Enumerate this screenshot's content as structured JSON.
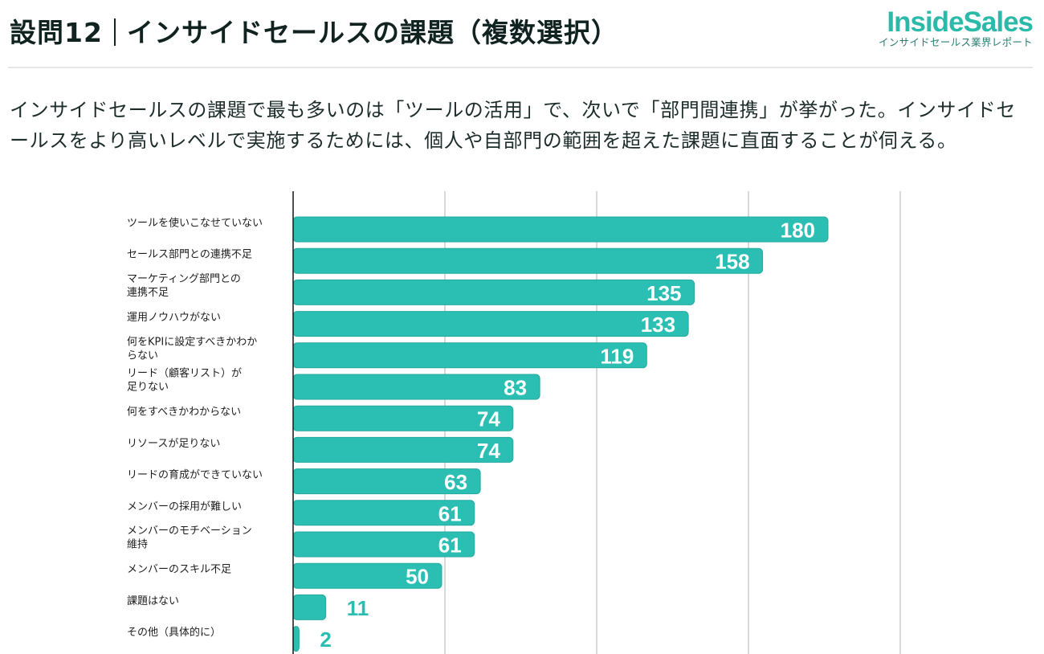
{
  "header": {
    "question_number": "設問12",
    "title": "インサイドセールスの課題（複数選択）",
    "logo_brand": "InsideSales",
    "logo_subtitle": "インサイドセールス業界レポート"
  },
  "description": "インサイドセールスの課題で最も多いのは「ツールの活用」で、次いで「部門間連携」が挙がった。インサイドセールスをより高いレベルで実施するためには、個人や自部門の範囲を超えた課題に直面することが伺える。",
  "colors": {
    "bar": "#2bbfb3",
    "bar_border": "#25a99e",
    "value_outside": "#2bbdb0",
    "gridline": "#cccccc",
    "axis": "#222222"
  },
  "chart_data": {
    "type": "bar",
    "orientation": "horizontal",
    "title": "インサイドセールスの課題（複数選択）",
    "xlabel": "",
    "ylabel": "",
    "xlim": [
      0,
      200
    ],
    "grid": true,
    "legend": "none",
    "categories": [
      [
        "ツールを使いこなせていない"
      ],
      [
        "セールス部門との連携不足"
      ],
      [
        "マーケティング部門との",
        "連携不足"
      ],
      [
        "運用ノウハウがない"
      ],
      [
        "何をKPIに設定すべきかわか",
        "らない"
      ],
      [
        "リード（顧客リスト）が",
        "足りない"
      ],
      [
        "何をすべきかわからない"
      ],
      [
        "リソースが足りない"
      ],
      [
        "リードの育成ができていない"
      ],
      [
        "メンバーの採用が難しい"
      ],
      [
        "メンバーのモチベーション",
        "維持"
      ],
      [
        "メンバーのスキル不足"
      ],
      [
        "課題はない"
      ],
      [
        "その他（具体的に）"
      ]
    ],
    "values": [
      180,
      158,
      135,
      133,
      119,
      83,
      74,
      74,
      63,
      61,
      61,
      50,
      11,
      2
    ]
  }
}
